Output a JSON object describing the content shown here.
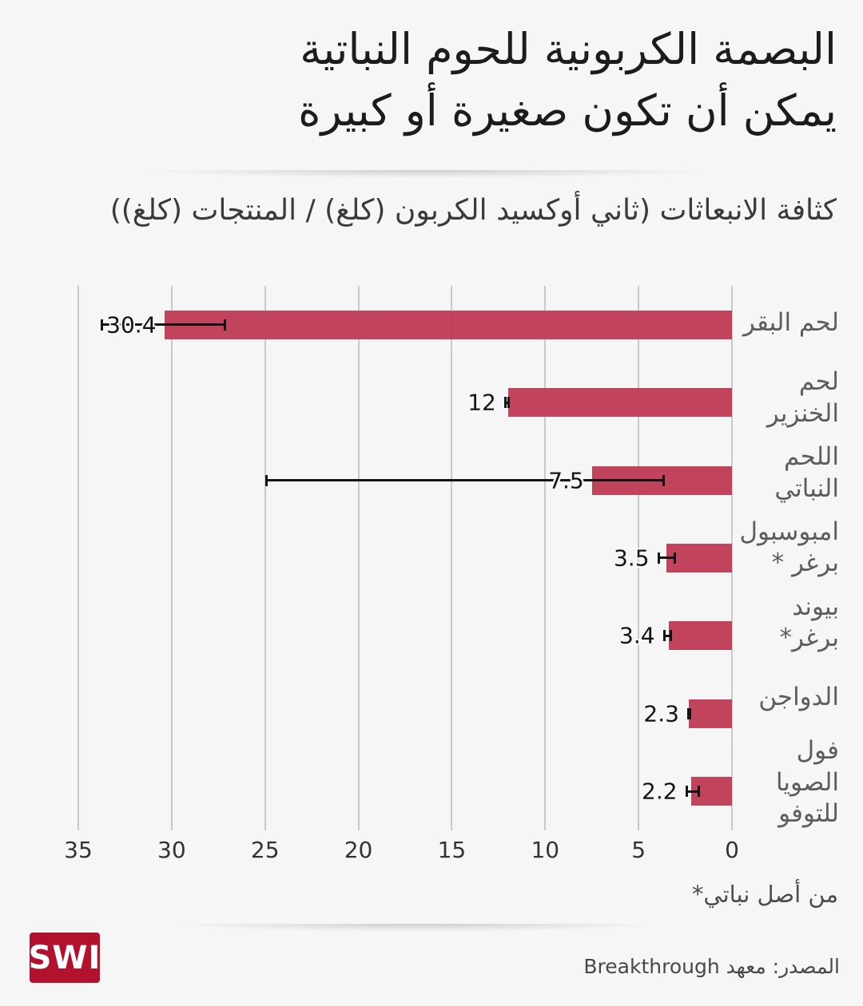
{
  "header": {
    "title_line1": "البصمة الكربونية للحوم النباتية",
    "title_line2": "يمكن أن تكون صغيرة أو كبيرة",
    "subtitle": "كثافة الانبعاثات (ثاني أوكسيد الكربون (كلغ) / المنتجات (كلغ))"
  },
  "chart_data": {
    "type": "bar",
    "orientation": "horizontal",
    "direction": "rtl_zero_at_right",
    "title": "البصمة الكربونية للحوم النباتية يمكن أن تكون صغيرة أو كبيرة",
    "xlabel": "كثافة الانبعاثات (ثاني أوكسيد الكربون (كلغ) / المنتجات (كلغ))",
    "categories": [
      "لحم البقر",
      "لحم الخنزير",
      "اللحم النباتي",
      "امبوسبول برغر *",
      "بيوند برغر*",
      "الدواجن",
      "فول الصويا للتوفو"
    ],
    "category_display": [
      "لحم البقر",
      "لحم\nالخنزير",
      "اللحم\nالنباتي",
      "امبوسبول\nبرغر *",
      "بيوند برغر*",
      "الدواجن",
      "فول الصويا\nللتوفو"
    ],
    "values": [
      30.4,
      12,
      7.5,
      3.5,
      3.4,
      2.3,
      2.2
    ],
    "value_labels": [
      "30.4",
      "12",
      "7.5",
      "3.5",
      "3.4",
      "2.3",
      "2.2"
    ],
    "error_ranges": [
      [
        27.1,
        33.8
      ],
      [
        11.9,
        12.2
      ],
      [
        3.6,
        25.0
      ],
      [
        3.0,
        4.0
      ],
      [
        3.2,
        3.7
      ],
      [
        2.2,
        2.4
      ],
      [
        1.7,
        2.5
      ]
    ],
    "x_ticks": [
      35,
      30,
      25,
      20,
      15,
      10,
      5,
      0
    ],
    "xlim": [
      0,
      35
    ],
    "grid": true,
    "legend": "none",
    "bar_color": "#bf3c55",
    "gridline_color": "#c9c9c9",
    "error_bar_color": "#141414"
  },
  "footnote": "من أصل نباتي*",
  "footer": {
    "logo_text": "SWI",
    "logo_color": "#b2122e",
    "source": "المصدر: معهد Breakthrough"
  }
}
